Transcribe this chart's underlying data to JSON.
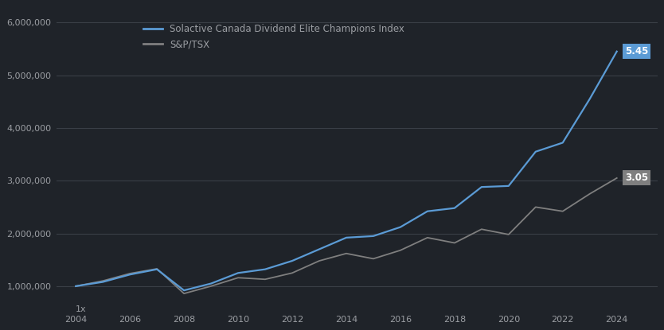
{
  "title": "",
  "legend_line1": "Solactive Canada Dividend Elite Champions Index",
  "legend_line2": "S&P/TSX",
  "line1_color": "#5b9bd5",
  "line2_color": "#7f7f7f",
  "background_color": "#1f2329",
  "grid_color": "#3a3f47",
  "text_color": "#9b9ea3",
  "x_years": [
    2004,
    2005,
    2006,
    2007,
    2008,
    2009,
    2010,
    2011,
    2012,
    2013,
    2014,
    2015,
    2016,
    2017,
    2018,
    2019,
    2020,
    2021,
    2022,
    2023,
    2024
  ],
  "line1_values": [
    1.0,
    1.08,
    1.22,
    1.32,
    0.92,
    1.05,
    1.25,
    1.32,
    1.48,
    1.7,
    1.92,
    1.95,
    2.12,
    2.42,
    2.48,
    2.88,
    2.9,
    3.55,
    3.72,
    4.55,
    5.45
  ],
  "line2_values": [
    1.0,
    1.1,
    1.24,
    1.33,
    0.86,
    1.0,
    1.16,
    1.13,
    1.25,
    1.48,
    1.62,
    1.52,
    1.68,
    1.92,
    1.82,
    2.08,
    1.98,
    2.5,
    2.42,
    2.75,
    3.05
  ],
  "ytick_values": [
    1.0,
    2.0,
    3.0,
    4.0,
    5.0,
    6.0
  ],
  "ytick_display": [
    "1,000,000",
    "2,000,000",
    "3,000,000",
    "4,000,000",
    "5,000,000",
    "6,000,000"
  ],
  "ylim": [
    0.55,
    6.3
  ],
  "xlim_min": 2003.3,
  "xlim_max": 2025.5,
  "end_label1": "5.45",
  "end_label2": "3.05",
  "x_tick_years": [
    2004,
    2006,
    2008,
    2010,
    2012,
    2014,
    2016,
    2018,
    2020,
    2022,
    2024
  ]
}
